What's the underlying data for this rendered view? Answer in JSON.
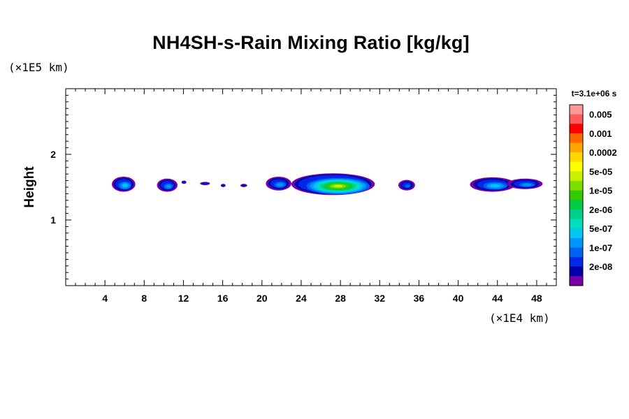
{
  "chart_data": {
    "type": "heatmap",
    "title": "NH4SH-s-Rain Mixing Ratio [kg/kg]",
    "xlabel": "",
    "ylabel": "Height",
    "x_unit": "(×1E4 km)",
    "y_unit": "(×1E5 km)",
    "time_label": "t=3.1e+06 s",
    "xlim": [
      0,
      50
    ],
    "ylim": [
      0,
      3
    ],
    "x_ticks": [
      4,
      8,
      12,
      16,
      20,
      24,
      28,
      32,
      36,
      40,
      44,
      48
    ],
    "y_ticks": [
      1,
      2
    ],
    "grid": false,
    "legend_position": "right",
    "colorbar": {
      "labels": [
        "0.005",
        "0.001",
        "0.0002",
        "5e-05",
        "1e-05",
        "2e-06",
        "5e-07",
        "1e-07",
        "2e-08"
      ],
      "colors": [
        "#ff9999",
        "#ff5a5a",
        "#ff0000",
        "#ff6600",
        "#ffa500",
        "#ffd700",
        "#ffff00",
        "#c8f000",
        "#7be000",
        "#33cc00",
        "#00cc44",
        "#00d08a",
        "#00e0c0",
        "#00c8f0",
        "#0096ff",
        "#0064f0",
        "#0028e6",
        "#0000aa",
        "#7800aa"
      ]
    },
    "blobs": [
      {
        "x": [
          4.7,
          7.1
        ],
        "y": [
          1.43,
          1.66
        ],
        "max_level": 5
      },
      {
        "x": [
          9.3,
          11.4
        ],
        "y": [
          1.43,
          1.63
        ],
        "max_level": 4
      },
      {
        "x": [
          11.8,
          12.3
        ],
        "y": [
          1.55,
          1.6
        ],
        "max_level": 2
      },
      {
        "x": [
          13.7,
          14.7
        ],
        "y": [
          1.53,
          1.58
        ],
        "max_level": 2
      },
      {
        "x": [
          15.8,
          16.3
        ],
        "y": [
          1.5,
          1.55
        ],
        "max_level": 1
      },
      {
        "x": [
          17.8,
          18.5
        ],
        "y": [
          1.5,
          1.55
        ],
        "max_level": 1
      },
      {
        "x": [
          20.4,
          23.0
        ],
        "y": [
          1.45,
          1.66
        ],
        "max_level": 4
      },
      {
        "x": [
          23.0,
          31.5
        ],
        "y": [
          1.38,
          1.71
        ],
        "max_level": 11
      },
      {
        "x": [
          33.9,
          35.6
        ],
        "y": [
          1.45,
          1.61
        ],
        "max_level": 3
      },
      {
        "x": [
          41.2,
          45.8
        ],
        "y": [
          1.43,
          1.65
        ],
        "max_level": 5
      },
      {
        "x": [
          45.0,
          48.6
        ],
        "y": [
          1.47,
          1.63
        ],
        "max_level": 4
      }
    ]
  }
}
